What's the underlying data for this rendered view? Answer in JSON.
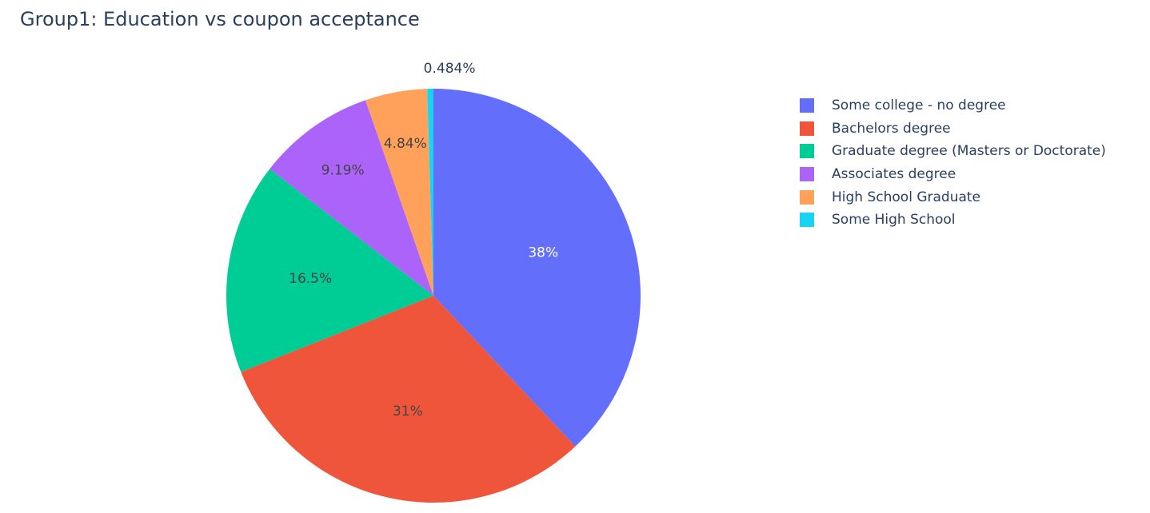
{
  "chart_data": {
    "type": "pie",
    "title": "Group1: Education vs coupon acceptance",
    "labels": [
      "Some college - no degree",
      "Bachelors degree",
      "Graduate degree (Masters or Doctorate)",
      "Associates degree",
      "High School Graduate",
      "Some High School"
    ],
    "values": [
      38.0,
      31.0,
      16.5,
      9.19,
      4.84,
      0.484
    ],
    "display_labels": [
      "38%",
      "31%",
      "16.5%",
      "9.19%",
      "4.84%",
      "0.484%"
    ],
    "colors": [
      "#636efa",
      "#EF553B",
      "#00cc96",
      "#ab63fa",
      "#FFA15A",
      "#19d3f3"
    ],
    "legend_position": "right"
  }
}
